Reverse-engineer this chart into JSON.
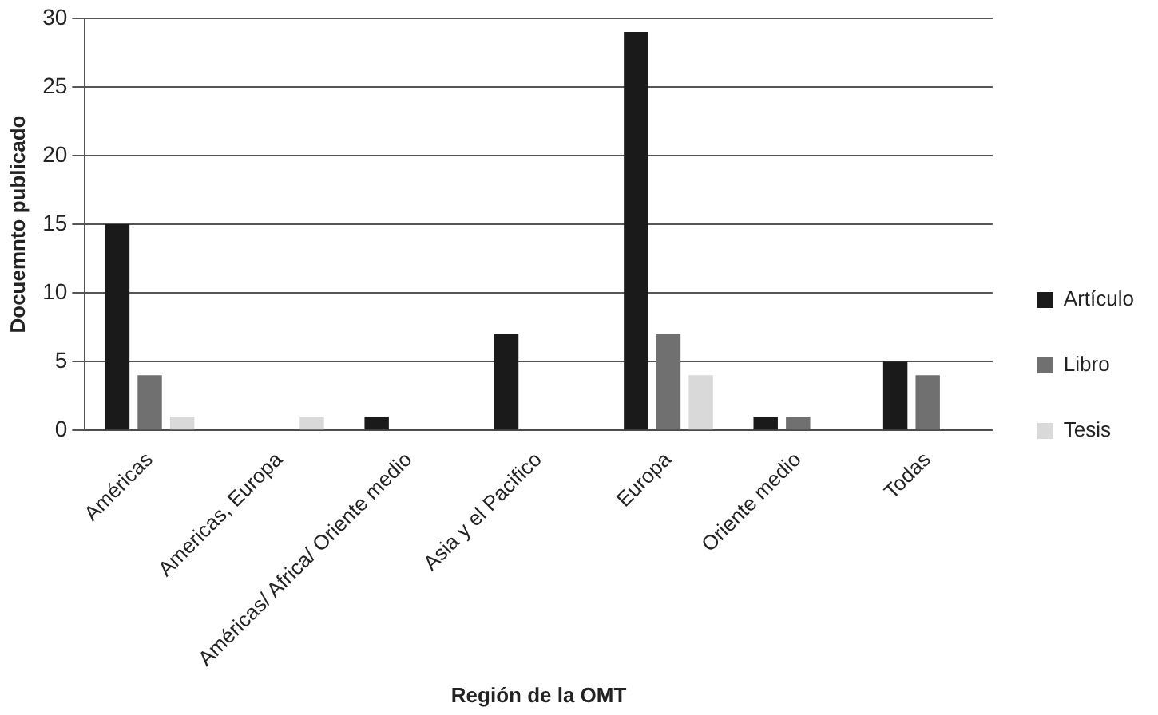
{
  "chart_data": {
    "type": "bar",
    "xlabel": "Región de la OMT",
    "ylabel": "Docuemnto publicado",
    "categories": [
      "Américas",
      "Americas, Europa",
      "Américas/ Africa/ Oriente medio",
      "Asia y el Pacifico",
      "Europa",
      "Oriente medio",
      "Todas"
    ],
    "series": [
      {
        "name": "Artículo",
        "color": "#1a1a1a",
        "values": [
          15,
          0,
          1,
          7,
          29,
          1,
          5
        ]
      },
      {
        "name": "Libro",
        "color": "#707070",
        "values": [
          4,
          0,
          0,
          0,
          7,
          1,
          4
        ]
      },
      {
        "name": "Tesis",
        "color": "#d9d9d9",
        "values": [
          1,
          1,
          0,
          0,
          4,
          0,
          0
        ]
      }
    ],
    "ylim": [
      0,
      30
    ],
    "yticks": [
      0,
      5,
      10,
      15,
      20,
      25,
      30
    ],
    "grid": "y",
    "legend": "right"
  }
}
